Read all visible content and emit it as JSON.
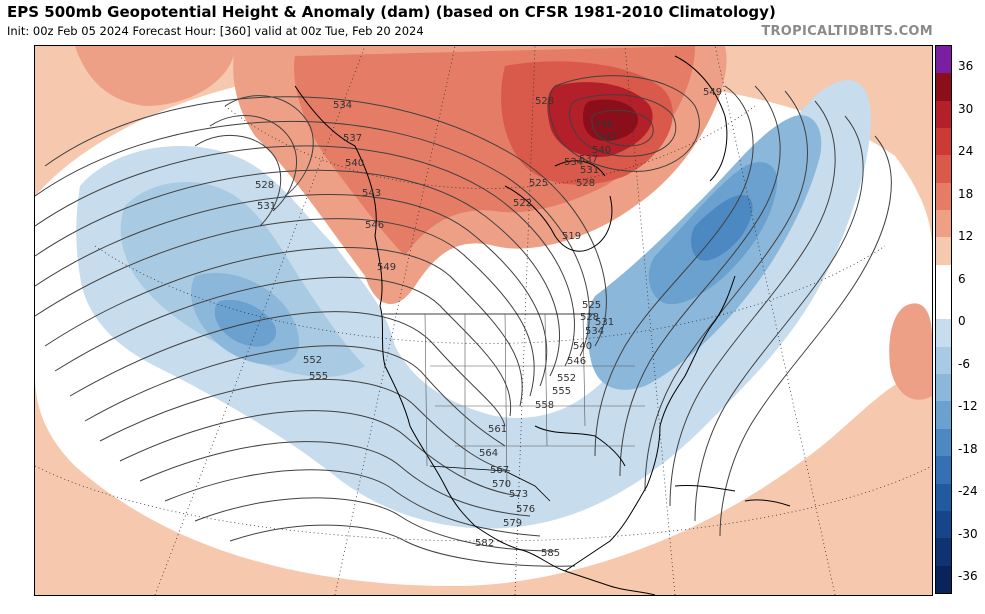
{
  "header": {
    "title": "EPS 500mb Geopotential Height & Anomaly (dam) (based on CFSR 1981-2010 Climatology)",
    "subtitle": "Init: 00z Feb 05 2024   Forecast Hour: [360]   valid at 00z Tue, Feb 20 2024",
    "brand": "TROPICALTIDBITS.COM"
  },
  "colorbar": {
    "labels": [
      "36",
      "30",
      "24",
      "18",
      "12",
      "6",
      "0",
      "-6",
      "-12",
      "-18",
      "-24",
      "-30",
      "-36"
    ],
    "colors": [
      "#7b1fa2",
      "#8b0f1a",
      "#b3202a",
      "#cc3b33",
      "#d9594a",
      "#e47c66",
      "#eea086",
      "#f6c8ae",
      "#ffffff",
      "#ffffff",
      "#c7dcec",
      "#a8cbe3",
      "#8bb8da",
      "#6aa1cf",
      "#4c89c2",
      "#3570b2",
      "#225a9e",
      "#17458a",
      "#0f3273",
      "#0a235a"
    ]
  },
  "contours": {
    "labels": [
      "528",
      "531",
      "534",
      "537",
      "540",
      "543",
      "546",
      "549",
      "552",
      "555",
      "519",
      "522",
      "525",
      "528",
      "531",
      "534",
      "537",
      "540",
      "543",
      "546",
      "549",
      "525",
      "528",
      "531",
      "534",
      "540",
      "546",
      "552",
      "555",
      "558",
      "561",
      "564",
      "567",
      "570",
      "573",
      "576",
      "579",
      "582",
      "585",
      "552",
      "555"
    ]
  }
}
